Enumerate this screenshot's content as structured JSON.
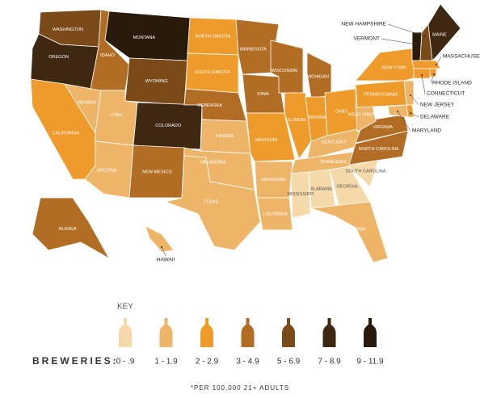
{
  "map": {
    "states": [
      {
        "label": "WASHINGTON",
        "bin": 4
      },
      {
        "label": "OREGON",
        "bin": 5
      },
      {
        "label": "CALIFORNIA",
        "bin": 2
      },
      {
        "label": "NEVADA",
        "bin": 1
      },
      {
        "label": "IDAHO",
        "bin": 3
      },
      {
        "label": "MONTANA",
        "bin": 6
      },
      {
        "label": "WYOMING",
        "bin": 4
      },
      {
        "label": "UTAH",
        "bin": 1
      },
      {
        "label": "COLORADO",
        "bin": 5
      },
      {
        "label": "ARIZONA",
        "bin": 1
      },
      {
        "label": "NEW MEXICO",
        "bin": 3
      },
      {
        "label": "NORTH DAKOTA",
        "bin": 2
      },
      {
        "label": "SOUTH DAKOTA",
        "bin": 2
      },
      {
        "label": "NEBRASKA",
        "bin": 3
      },
      {
        "label": "KANSAS",
        "bin": 1
      },
      {
        "label": "OKLAHOMA",
        "bin": 1
      },
      {
        "label": "TEXAS",
        "bin": 1
      },
      {
        "label": "MINNESOTA",
        "bin": 3
      },
      {
        "label": "IOWA",
        "bin": 3
      },
      {
        "label": "MISSOURI",
        "bin": 2
      },
      {
        "label": "ARKANSAS",
        "bin": 1
      },
      {
        "label": "LOUISIANA",
        "bin": 1
      },
      {
        "label": "WISCONSIN",
        "bin": 3
      },
      {
        "label": "MICHIGAN",
        "bin": 3
      },
      {
        "label": "ILLINOIS",
        "bin": 2
      },
      {
        "label": "INDIANA",
        "bin": 2
      },
      {
        "label": "OHIO",
        "bin": 2
      },
      {
        "label": "KENTUCKY",
        "bin": 1
      },
      {
        "label": "TENNESSEE",
        "bin": 1
      },
      {
        "label": "MISSISSIPPI",
        "bin": 0
      },
      {
        "label": "ALABAMA",
        "bin": 0
      },
      {
        "label": "GEORGIA",
        "bin": 0
      },
      {
        "label": "FLORIDA",
        "bin": 1
      },
      {
        "label": "SOUTH CAROLINA",
        "bin": 0
      },
      {
        "label": "NORTH CAROLINA",
        "bin": 3
      },
      {
        "label": "VIRGINIA",
        "bin": 3
      },
      {
        "label": "WEST VIRGINIA",
        "bin": 1
      },
      {
        "label": "PENNSYLVANIA",
        "bin": 2
      },
      {
        "label": "NEW YORK",
        "bin": 2
      },
      {
        "label": "VERMONT",
        "bin": 6
      },
      {
        "label": "NEW HAMPSHIRE",
        "bin": 4
      },
      {
        "label": "MAINE",
        "bin": 5
      },
      {
        "label": "MASSACHUSETTS",
        "bin": 2
      },
      {
        "label": "RHODE ISLAND",
        "bin": 2
      },
      {
        "label": "CONNECTICUT",
        "bin": 2
      },
      {
        "label": "NEW JERSEY",
        "bin": 1
      },
      {
        "label": "DELAWARE",
        "bin": 2
      },
      {
        "label": "MARYLAND",
        "bin": 1
      },
      {
        "label": "ALASKA",
        "bin": 3
      },
      {
        "label": "HAWAII",
        "bin": 1
      }
    ],
    "legend": {
      "title": "KEY",
      "label": "BREWERIES:",
      "bins": [
        {
          "label": "0 - .9",
          "color": "#f5d9a8"
        },
        {
          "label": "1 - 1.9",
          "color": "#eeb568"
        },
        {
          "label": "2 - 2.9",
          "color": "#ee9b2b"
        },
        {
          "label": "3 - 4.9",
          "color": "#b26d24"
        },
        {
          "label": "5 - 6.9",
          "color": "#7a4a19"
        },
        {
          "label": "7 - 8.9",
          "color": "#3f2812"
        },
        {
          "label": "9 - 11.9",
          "color": "#2a1a0c"
        }
      ]
    },
    "footnote": "*PER 100,000 21+ ADULTS"
  }
}
